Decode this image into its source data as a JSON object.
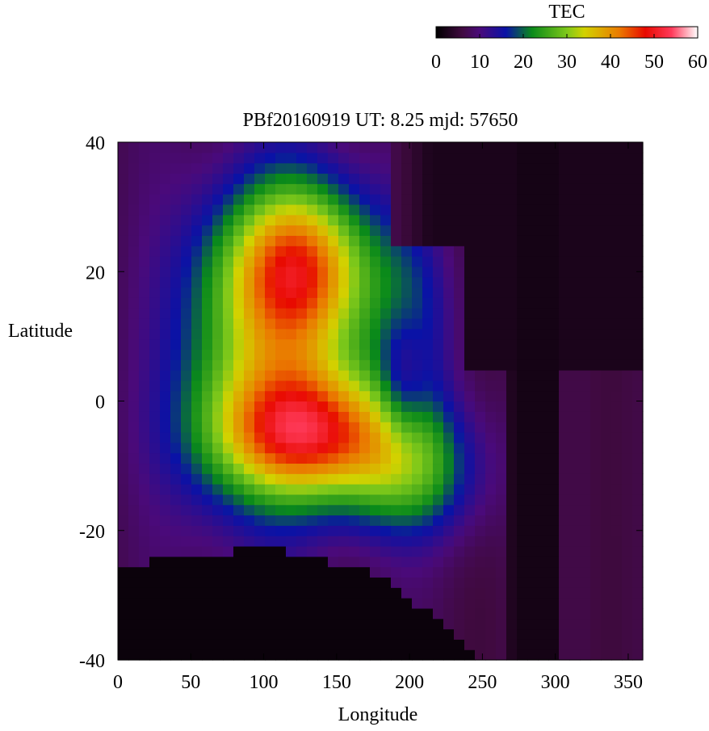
{
  "chart_data": {
    "type": "heatmap",
    "title": "PBf20160919  UT: 8.25  mjd: 57650",
    "xlabel": "Longitude",
    "ylabel": "Latitude",
    "xlim": [
      0,
      360
    ],
    "ylim": [
      -40,
      40
    ],
    "x_ticks": [
      "0",
      "50",
      "100",
      "150",
      "200",
      "250",
      "300",
      "350"
    ],
    "y_ticks": [
      "-40",
      "-20",
      "0",
      "20",
      "40"
    ],
    "grid": false,
    "colorbar": {
      "label": "TEC",
      "range": [
        0,
        60
      ],
      "ticks": [
        "0",
        "10",
        "20",
        "30",
        "40",
        "50",
        "60"
      ],
      "colormap": [
        {
          "value": 0,
          "color": "#000000"
        },
        {
          "value": 6,
          "color": "#400a40"
        },
        {
          "value": 10,
          "color": "#4a0a7a"
        },
        {
          "value": 16,
          "color": "#0a12a6"
        },
        {
          "value": 22,
          "color": "#0a8a1a"
        },
        {
          "value": 30,
          "color": "#7ec81a"
        },
        {
          "value": 34,
          "color": "#d2d200"
        },
        {
          "value": 42,
          "color": "#ea7a00"
        },
        {
          "value": 48,
          "color": "#e80a00"
        },
        {
          "value": 54,
          "color": "#ff3a5a"
        },
        {
          "value": 60,
          "color": "#ffffff"
        }
      ]
    },
    "field": {
      "grid_lon_step_deg": 7.2,
      "grid_lat_step_deg": 1.6,
      "background_tec": 7,
      "night_region_tec": 0,
      "peaks": [
        {
          "lon": 125,
          "lat": 21,
          "tec": 29,
          "sigma_lon": 35,
          "sigma_lat": 9
        },
        {
          "lon": 132,
          "lat": -5,
          "tec": 32,
          "sigma_lon": 45,
          "sigma_lat": 7
        },
        {
          "lon": 200,
          "lat": -11,
          "tec": 16,
          "sigma_lon": 33,
          "sigma_lat": 7
        },
        {
          "lon": 118,
          "lat": 8,
          "tec": 16,
          "sigma_lon": 42,
          "sigma_lat": 16
        },
        {
          "lon": 200,
          "lat": 12,
          "tec": 9,
          "sigma_lon": 20,
          "sigma_lat": 10
        },
        {
          "lon": 70,
          "lat": 5,
          "tec": 8,
          "sigma_lon": 30,
          "sigma_lat": 18
        }
      ],
      "troughs": [
        {
          "lon": 195,
          "lat": 3,
          "tec": -10,
          "sigma_lon": 12,
          "sigma_lat": 8
        }
      ]
    }
  }
}
